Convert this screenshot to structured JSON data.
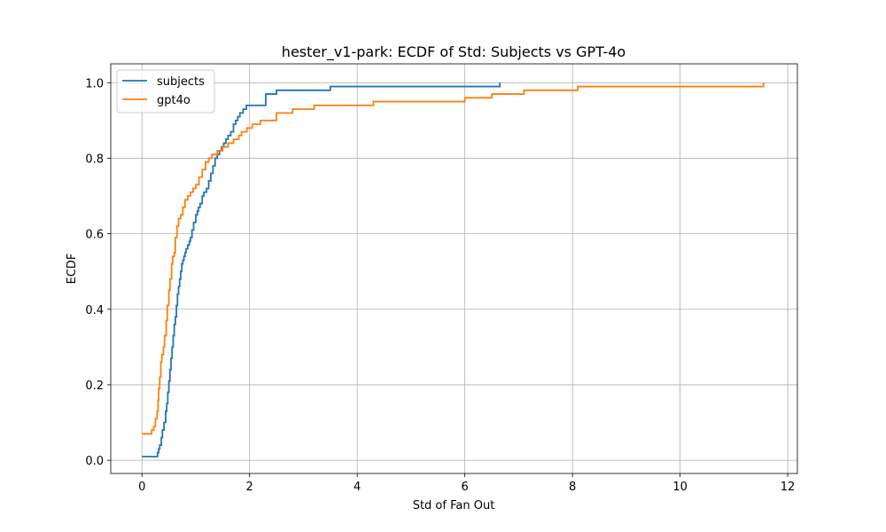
{
  "chart_data": {
    "type": "line",
    "step": true,
    "title": "hester_v1-park: ECDF of Std: Subjects vs GPT-4o",
    "xlabel": "Std of Fan Out",
    "ylabel": "ECDF",
    "xlim": [
      -0.58,
      12.18
    ],
    "ylim": [
      -0.035,
      1.05
    ],
    "xticks": [
      0,
      2,
      4,
      6,
      8,
      10,
      12
    ],
    "xtick_labels": [
      "0",
      "2",
      "4",
      "6",
      "8",
      "10",
      "12"
    ],
    "yticks": [
      0.0,
      0.2,
      0.4,
      0.6,
      0.8,
      1.0
    ],
    "ytick_labels": [
      "0.0",
      "0.2",
      "0.4",
      "0.6",
      "0.8",
      "1.0"
    ],
    "grid": true,
    "legend": "upper-left",
    "series": [
      {
        "name": "subjects",
        "color": "#1f77b4",
        "x": [
          0.0,
          0.29,
          0.31,
          0.33,
          0.36,
          0.38,
          0.41,
          0.44,
          0.46,
          0.48,
          0.5,
          0.52,
          0.54,
          0.56,
          0.58,
          0.6,
          0.62,
          0.64,
          0.66,
          0.68,
          0.7,
          0.72,
          0.74,
          0.76,
          0.78,
          0.8,
          0.82,
          0.85,
          0.88,
          0.9,
          0.93,
          0.96,
          1.0,
          1.03,
          1.05,
          1.08,
          1.12,
          1.15,
          1.2,
          1.24,
          1.28,
          1.32,
          1.36,
          1.4,
          1.44,
          1.48,
          1.52,
          1.56,
          1.6,
          1.65,
          1.7,
          1.74,
          1.78,
          1.82,
          1.88,
          1.94,
          2.0,
          2.3,
          2.5,
          3.5,
          6.65
        ],
        "y": [
          0.01,
          0.02,
          0.03,
          0.04,
          0.06,
          0.08,
          0.1,
          0.13,
          0.15,
          0.18,
          0.21,
          0.24,
          0.27,
          0.3,
          0.33,
          0.36,
          0.38,
          0.41,
          0.44,
          0.46,
          0.48,
          0.5,
          0.52,
          0.53,
          0.54,
          0.55,
          0.56,
          0.57,
          0.58,
          0.59,
          0.61,
          0.63,
          0.65,
          0.66,
          0.67,
          0.68,
          0.7,
          0.71,
          0.72,
          0.74,
          0.76,
          0.78,
          0.8,
          0.81,
          0.82,
          0.83,
          0.84,
          0.85,
          0.86,
          0.87,
          0.89,
          0.9,
          0.91,
          0.92,
          0.93,
          0.94,
          0.94,
          0.97,
          0.98,
          0.99,
          1.0
        ],
        "xmax": 6.65
      },
      {
        "name": "gpt4o",
        "color": "#ff7f0e",
        "x": [
          0.0,
          0.18,
          0.22,
          0.25,
          0.28,
          0.3,
          0.31,
          0.33,
          0.35,
          0.37,
          0.4,
          0.42,
          0.45,
          0.47,
          0.5,
          0.52,
          0.55,
          0.57,
          0.6,
          0.62,
          0.65,
          0.68,
          0.72,
          0.76,
          0.8,
          0.85,
          0.9,
          0.95,
          1.0,
          1.06,
          1.12,
          1.18,
          1.24,
          1.3,
          1.4,
          1.5,
          1.6,
          1.7,
          1.8,
          1.85,
          1.95,
          2.05,
          2.2,
          2.5,
          2.8,
          3.2,
          4.3,
          6.0,
          6.5,
          7.1,
          8.1,
          11.55
        ],
        "y": [
          0.07,
          0.08,
          0.09,
          0.11,
          0.13,
          0.16,
          0.19,
          0.22,
          0.26,
          0.28,
          0.3,
          0.33,
          0.37,
          0.41,
          0.45,
          0.48,
          0.52,
          0.54,
          0.55,
          0.59,
          0.62,
          0.64,
          0.65,
          0.67,
          0.69,
          0.7,
          0.71,
          0.72,
          0.73,
          0.75,
          0.77,
          0.79,
          0.8,
          0.81,
          0.82,
          0.83,
          0.84,
          0.85,
          0.86,
          0.87,
          0.88,
          0.89,
          0.9,
          0.92,
          0.93,
          0.94,
          0.95,
          0.96,
          0.97,
          0.98,
          0.99,
          1.0
        ],
        "xmax": 11.55
      }
    ]
  }
}
